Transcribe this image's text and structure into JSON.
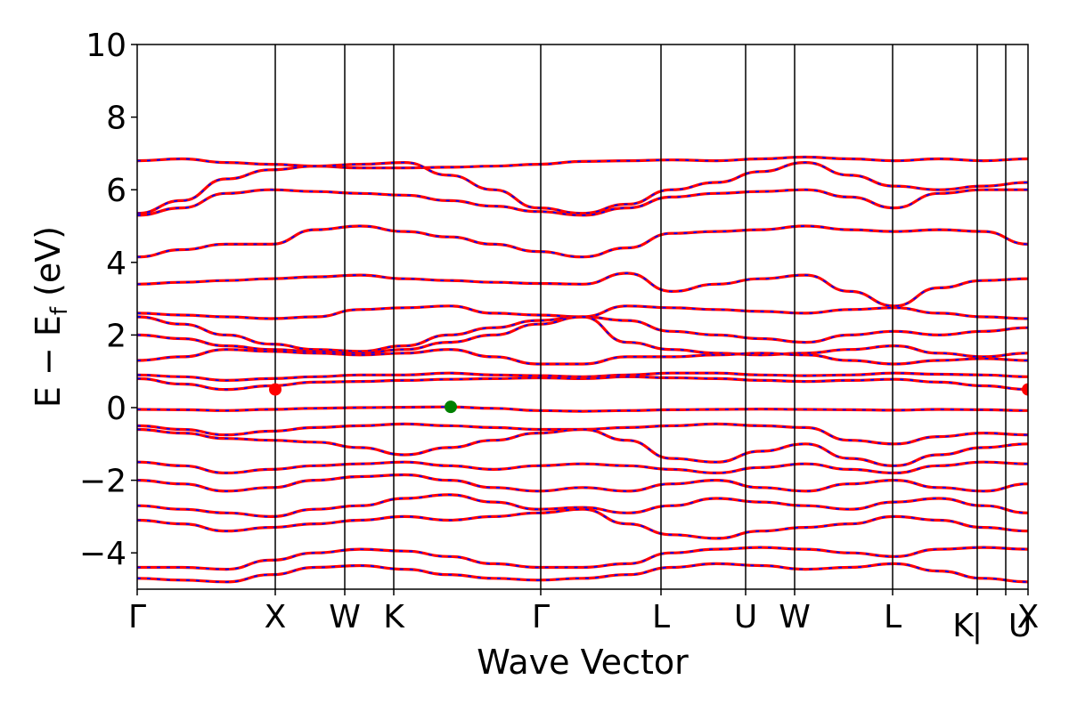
{
  "chart_data": {
    "type": "line",
    "title": "",
    "xlabel": "Wave Vector",
    "ylabel": "E − E_f (eV)",
    "ylabel_parts": {
      "main": "E − E",
      "sub": "f",
      "unit": " (eV)"
    },
    "ylim": [
      -5,
      10
    ],
    "yticks": [
      -4,
      -2,
      0,
      2,
      4,
      6,
      8,
      10
    ],
    "ytick_labels": [
      "−4",
      "−2",
      "0",
      "2",
      "4",
      "6",
      "8",
      "10"
    ],
    "xlim": [
      0,
      1
    ],
    "kpoints": [
      {
        "label": "Γ",
        "x": 0.0
      },
      {
        "label": "X",
        "x": 0.155
      },
      {
        "label": "W",
        "x": 0.233
      },
      {
        "label": "K",
        "x": 0.288
      },
      {
        "label": "Γ",
        "x": 0.453
      },
      {
        "label": "L",
        "x": 0.588
      },
      {
        "label": "U",
        "x": 0.683
      },
      {
        "label": "W",
        "x": 0.738
      },
      {
        "label": "L",
        "x": 0.848
      },
      {
        "label": "K",
        "x": 0.943
      },
      {
        "label": "|",
        "x": 0.943
      },
      {
        "label": "U",
        "x": 0.975
      },
      {
        "label": "X",
        "x": 1.0
      }
    ],
    "series_colors": {
      "primary": "#ff0000",
      "overlay": "#0000ff"
    },
    "special_points": [
      {
        "name": "cbm",
        "x": 0.155,
        "y": 0.5,
        "color": "#ff0000"
      },
      {
        "name": "cbm",
        "x": 1.0,
        "y": 0.5,
        "color": "#ff0000"
      },
      {
        "name": "vbm",
        "x": 0.352,
        "y": 0.02,
        "color": "#008000"
      }
    ],
    "bands": [
      [
        6.8,
        6.85,
        6.75,
        6.7,
        6.65,
        6.6,
        6.6,
        6.62,
        6.65,
        6.7,
        6.78,
        6.8,
        6.82,
        6.8,
        6.85,
        6.9,
        6.85,
        6.8,
        6.85,
        6.8,
        6.85
      ],
      [
        5.35,
        5.7,
        6.3,
        6.55,
        6.65,
        6.7,
        6.75,
        6.4,
        6.0,
        5.5,
        5.35,
        5.6,
        6.0,
        6.2,
        6.5,
        6.75,
        6.4,
        6.1,
        6.0,
        6.1,
        6.2
      ],
      [
        5.3,
        5.5,
        5.9,
        6.0,
        5.95,
        5.9,
        5.85,
        5.7,
        5.55,
        5.4,
        5.3,
        5.5,
        5.8,
        5.9,
        5.95,
        6.0,
        5.8,
        5.5,
        5.9,
        6.0,
        6.0
      ],
      [
        4.15,
        4.35,
        4.5,
        4.5,
        4.9,
        5.0,
        4.85,
        4.7,
        4.5,
        4.3,
        4.15,
        4.4,
        4.8,
        4.85,
        4.9,
        5.0,
        4.9,
        4.85,
        4.9,
        4.85,
        4.5
      ],
      [
        3.4,
        3.45,
        3.5,
        3.55,
        3.6,
        3.65,
        3.55,
        3.5,
        3.45,
        3.42,
        3.4,
        3.7,
        3.2,
        3.4,
        3.55,
        3.65,
        3.2,
        2.8,
        3.3,
        3.5,
        3.55
      ],
      [
        2.6,
        2.55,
        2.5,
        2.45,
        2.5,
        2.7,
        2.75,
        2.8,
        2.6,
        2.55,
        2.5,
        2.8,
        2.75,
        2.7,
        2.65,
        2.6,
        2.7,
        2.75,
        2.6,
        2.5,
        2.45
      ],
      [
        2.5,
        2.3,
        2.0,
        1.75,
        1.6,
        1.55,
        1.7,
        2.0,
        2.2,
        2.4,
        2.5,
        2.4,
        2.1,
        2.0,
        1.9,
        1.8,
        2.0,
        2.1,
        2.0,
        2.1,
        2.2
      ],
      [
        2.0,
        1.9,
        1.7,
        1.6,
        1.55,
        1.5,
        1.6,
        1.8,
        2.0,
        2.3,
        2.5,
        1.8,
        1.6,
        1.5,
        1.45,
        1.5,
        1.6,
        1.7,
        1.5,
        1.4,
        1.5
      ],
      [
        1.3,
        1.4,
        1.6,
        1.55,
        1.5,
        1.45,
        1.5,
        1.6,
        1.4,
        1.2,
        1.2,
        1.4,
        1.4,
        1.45,
        1.5,
        1.45,
        1.3,
        1.2,
        1.3,
        1.35,
        1.3
      ],
      [
        0.9,
        0.85,
        0.75,
        0.8,
        0.85,
        0.9,
        0.9,
        0.95,
        0.9,
        0.88,
        0.85,
        0.9,
        0.95,
        0.95,
        0.9,
        0.88,
        0.9,
        0.95,
        0.92,
        0.9,
        0.85
      ],
      [
        0.8,
        0.65,
        0.5,
        0.6,
        0.7,
        0.72,
        0.75,
        0.78,
        0.8,
        0.82,
        0.8,
        0.85,
        0.82,
        0.8,
        0.75,
        0.72,
        0.75,
        0.78,
        0.7,
        0.6,
        0.5
      ],
      [
        -0.05,
        -0.06,
        -0.08,
        -0.05,
        -0.02,
        0.0,
        0.01,
        0.02,
        -0.02,
        -0.08,
        -0.1,
        -0.08,
        -0.06,
        -0.05,
        -0.04,
        -0.05,
        -0.06,
        -0.07,
        -0.05,
        -0.06,
        -0.08
      ],
      [
        -0.5,
        -0.6,
        -0.75,
        -0.65,
        -0.55,
        -0.5,
        -0.45,
        -0.5,
        -0.55,
        -0.6,
        -0.6,
        -0.55,
        -0.5,
        -0.45,
        -0.5,
        -0.55,
        -0.9,
        -1.0,
        -0.8,
        -0.7,
        -0.75
      ],
      [
        -0.6,
        -0.7,
        -0.85,
        -0.9,
        -0.95,
        -1.1,
        -1.3,
        -1.1,
        -0.9,
        -0.7,
        -0.6,
        -0.9,
        -1.4,
        -1.5,
        -1.2,
        -1.0,
        -1.4,
        -1.6,
        -1.3,
        -1.1,
        -1.0
      ],
      [
        -1.5,
        -1.6,
        -1.8,
        -1.7,
        -1.6,
        -1.55,
        -1.5,
        -1.6,
        -1.7,
        -1.6,
        -1.55,
        -1.6,
        -1.7,
        -1.8,
        -1.65,
        -1.55,
        -1.7,
        -1.8,
        -1.6,
        -1.5,
        -1.55
      ],
      [
        -2.0,
        -2.1,
        -2.3,
        -2.2,
        -2.0,
        -1.9,
        -1.85,
        -2.0,
        -2.2,
        -2.3,
        -2.2,
        -2.3,
        -2.1,
        -2.0,
        -2.2,
        -2.3,
        -2.1,
        -2.0,
        -2.2,
        -2.3,
        -2.1
      ],
      [
        -2.7,
        -2.8,
        -2.9,
        -3.0,
        -2.8,
        -2.7,
        -2.5,
        -2.4,
        -2.6,
        -2.8,
        -2.75,
        -2.9,
        -2.7,
        -2.5,
        -2.6,
        -2.7,
        -2.8,
        -2.6,
        -2.5,
        -2.7,
        -2.9
      ],
      [
        -3.1,
        -3.2,
        -3.4,
        -3.3,
        -3.2,
        -3.1,
        -3.0,
        -3.1,
        -3.0,
        -2.9,
        -2.8,
        -3.2,
        -3.5,
        -3.6,
        -3.4,
        -3.3,
        -3.2,
        -3.0,
        -3.1,
        -3.3,
        -3.4
      ],
      [
        -4.4,
        -4.4,
        -4.45,
        -4.2,
        -4.0,
        -3.9,
        -3.95,
        -4.1,
        -4.3,
        -4.4,
        -4.4,
        -4.3,
        -4.0,
        -3.9,
        -3.85,
        -3.9,
        -4.0,
        -4.1,
        -3.9,
        -3.85,
        -3.9
      ],
      [
        -4.7,
        -4.75,
        -4.8,
        -4.6,
        -4.4,
        -4.35,
        -4.45,
        -4.6,
        -4.7,
        -4.75,
        -4.7,
        -4.6,
        -4.4,
        -4.3,
        -4.35,
        -4.45,
        -4.4,
        -4.3,
        -4.5,
        -4.7,
        -4.8
      ]
    ]
  }
}
